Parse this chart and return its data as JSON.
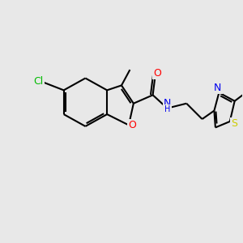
{
  "background_color": "#e8e8e8",
  "bond_color": "#000000",
  "bond_width": 1.5,
  "atom_colors": {
    "Cl": "#00bb00",
    "O": "#ff0000",
    "N": "#0000ee",
    "S": "#cccc00",
    "C": "#000000"
  },
  "font_size": 9,
  "fig_width": 3.0,
  "fig_height": 3.0,
  "dpi": 100
}
